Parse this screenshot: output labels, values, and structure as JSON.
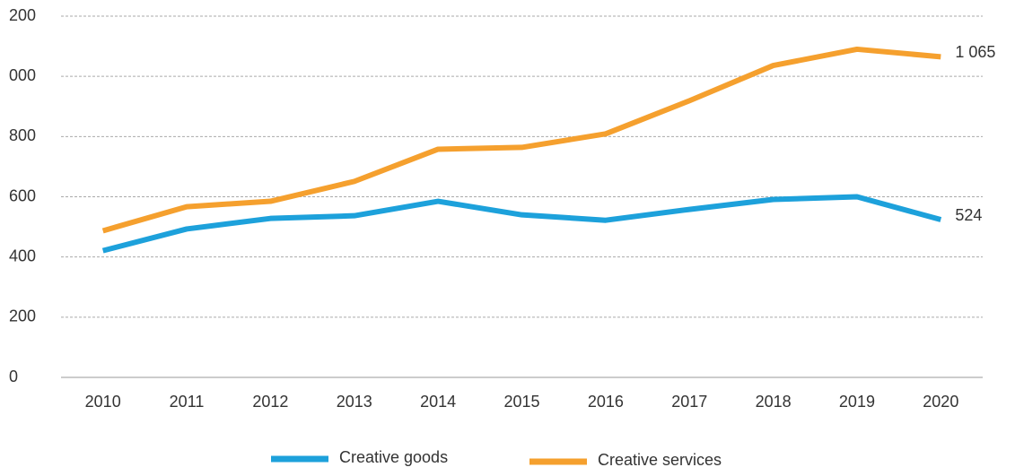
{
  "chart_data": {
    "type": "line",
    "x": [
      2010,
      2011,
      2012,
      2013,
      2014,
      2015,
      2016,
      2017,
      2018,
      2019,
      2020
    ],
    "series": [
      {
        "name": "Creative goods",
        "color": "#1da1db",
        "values": [
          421,
          493,
          528,
          537,
          585,
          540,
          522,
          558,
          591,
          600,
          524
        ],
        "value_labels": [
          null,
          null,
          null,
          null,
          null,
          null,
          null,
          null,
          null,
          null,
          "524"
        ]
      },
      {
        "name": "Creative services",
        "color": "#f5a02e",
        "values": [
          487,
          567,
          585,
          651,
          758,
          764,
          809,
          919,
          1036,
          1090,
          1065
        ],
        "value_labels": [
          null,
          null,
          null,
          null,
          null,
          null,
          null,
          null,
          null,
          null,
          "1 065"
        ]
      }
    ],
    "xlim": [
      2009.5,
      2020.5
    ],
    "ylim": [
      0,
      1200
    ],
    "yticks": [
      0,
      200,
      400,
      600,
      800,
      {
        "value": 1000,
        "label": "000"
      },
      {
        "value": 1200,
        "label": "200"
      }
    ],
    "grid": true,
    "legend": "bottom"
  }
}
